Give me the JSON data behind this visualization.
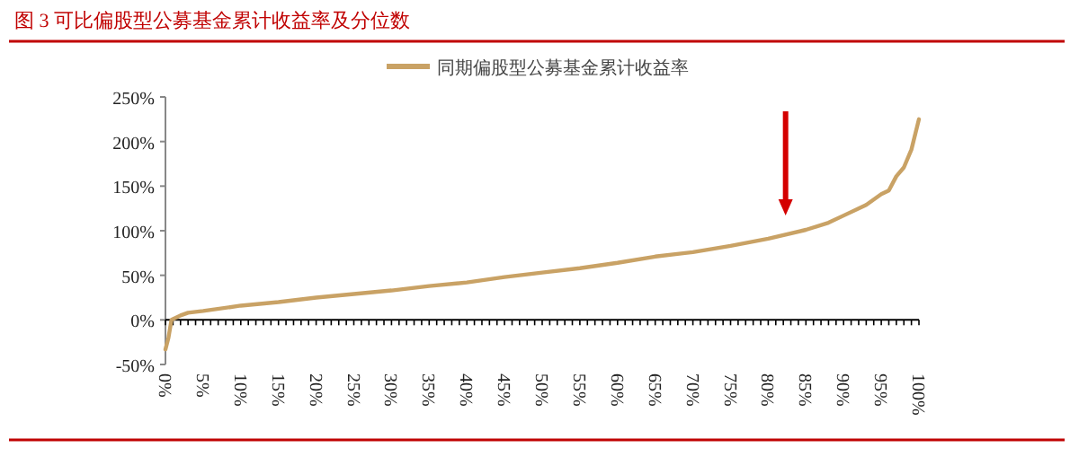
{
  "chart_data": {
    "type": "line",
    "title": "图 3    可比偏股型公募基金累计收益率及分位数",
    "legend": "top",
    "series": [
      {
        "name": "同期偏股型公募基金累计收益率",
        "color": "#c9a265",
        "x": [
          0,
          0.4,
          0.8,
          2,
          3,
          5,
          10,
          15,
          20,
          25,
          30,
          35,
          40,
          45,
          50,
          55,
          60,
          65,
          70,
          75,
          80,
          85,
          88,
          90,
          93,
          95,
          96,
          97,
          98,
          99,
          100
        ],
        "values": [
          -33,
          -20,
          0,
          5,
          8,
          10,
          16,
          20,
          25,
          29,
          33,
          38,
          42,
          48,
          53,
          58,
          64,
          71,
          76,
          83,
          91,
          101,
          109,
          117,
          129,
          141,
          145,
          161,
          171,
          191,
          225
        ]
      }
    ],
    "xlim": [
      0,
      100
    ],
    "ylim": [
      -50,
      250
    ],
    "yticks": [
      {
        "value": -50,
        "label": "-50%"
      },
      {
        "value": 0,
        "label": "0%"
      },
      {
        "value": 50,
        "label": "50%"
      },
      {
        "value": 100,
        "label": "100%"
      },
      {
        "value": 150,
        "label": "150%"
      },
      {
        "value": 200,
        "label": "200%"
      },
      {
        "value": 250,
        "label": "250%"
      }
    ],
    "xticks": [
      {
        "value": 0,
        "label": "0%"
      },
      {
        "value": 1,
        "label": null
      },
      {
        "value": 2,
        "label": null
      },
      {
        "value": 3,
        "label": null
      },
      {
        "value": 4,
        "label": null
      },
      {
        "value": 5,
        "label": "5%"
      },
      {
        "value": 6,
        "label": null
      },
      {
        "value": 7,
        "label": null
      },
      {
        "value": 8,
        "label": null
      },
      {
        "value": 9,
        "label": null
      },
      {
        "value": 10,
        "label": "10%"
      },
      {
        "value": 11,
        "label": null
      },
      {
        "value": 12,
        "label": null
      },
      {
        "value": 13,
        "label": null
      },
      {
        "value": 14,
        "label": null
      },
      {
        "value": 15,
        "label": "15%"
      },
      {
        "value": 16,
        "label": null
      },
      {
        "value": 17,
        "label": null
      },
      {
        "value": 18,
        "label": null
      },
      {
        "value": 19,
        "label": null
      },
      {
        "value": 20,
        "label": "20%"
      },
      {
        "value": 21,
        "label": null
      },
      {
        "value": 22,
        "label": null
      },
      {
        "value": 23,
        "label": null
      },
      {
        "value": 24,
        "label": null
      },
      {
        "value": 25,
        "label": "25%"
      },
      {
        "value": 26,
        "label": null
      },
      {
        "value": 27,
        "label": null
      },
      {
        "value": 28,
        "label": null
      },
      {
        "value": 29,
        "label": null
      },
      {
        "value": 30,
        "label": "30%"
      },
      {
        "value": 31,
        "label": null
      },
      {
        "value": 32,
        "label": null
      },
      {
        "value": 33,
        "label": null
      },
      {
        "value": 34,
        "label": null
      },
      {
        "value": 35,
        "label": "35%"
      },
      {
        "value": 36,
        "label": null
      },
      {
        "value": 37,
        "label": null
      },
      {
        "value": 38,
        "label": null
      },
      {
        "value": 39,
        "label": null
      },
      {
        "value": 40,
        "label": "40%"
      },
      {
        "value": 41,
        "label": null
      },
      {
        "value": 42,
        "label": null
      },
      {
        "value": 43,
        "label": null
      },
      {
        "value": 44,
        "label": null
      },
      {
        "value": 45,
        "label": "45%"
      },
      {
        "value": 46,
        "label": null
      },
      {
        "value": 47,
        "label": null
      },
      {
        "value": 48,
        "label": null
      },
      {
        "value": 49,
        "label": null
      },
      {
        "value": 50,
        "label": "50%"
      },
      {
        "value": 51,
        "label": null
      },
      {
        "value": 52,
        "label": null
      },
      {
        "value": 53,
        "label": null
      },
      {
        "value": 54,
        "label": null
      },
      {
        "value": 55,
        "label": "55%"
      },
      {
        "value": 56,
        "label": null
      },
      {
        "value": 57,
        "label": null
      },
      {
        "value": 58,
        "label": null
      },
      {
        "value": 59,
        "label": null
      },
      {
        "value": 60,
        "label": "60%"
      },
      {
        "value": 61,
        "label": null
      },
      {
        "value": 62,
        "label": null
      },
      {
        "value": 63,
        "label": null
      },
      {
        "value": 64,
        "label": null
      },
      {
        "value": 65,
        "label": "65%"
      },
      {
        "value": 66,
        "label": null
      },
      {
        "value": 67,
        "label": null
      },
      {
        "value": 68,
        "label": null
      },
      {
        "value": 69,
        "label": null
      },
      {
        "value": 70,
        "label": "70%"
      },
      {
        "value": 71,
        "label": null
      },
      {
        "value": 72,
        "label": null
      },
      {
        "value": 73,
        "label": null
      },
      {
        "value": 74,
        "label": null
      },
      {
        "value": 75,
        "label": "75%"
      },
      {
        "value": 76,
        "label": null
      },
      {
        "value": 77,
        "label": null
      },
      {
        "value": 78,
        "label": null
      },
      {
        "value": 79,
        "label": null
      },
      {
        "value": 80,
        "label": "80%"
      },
      {
        "value": 81,
        "label": null
      },
      {
        "value": 82,
        "label": null
      },
      {
        "value": 83,
        "label": null
      },
      {
        "value": 84,
        "label": null
      },
      {
        "value": 85,
        "label": "85%"
      },
      {
        "value": 86,
        "label": null
      },
      {
        "value": 87,
        "label": null
      },
      {
        "value": 88,
        "label": null
      },
      {
        "value": 89,
        "label": null
      },
      {
        "value": 90,
        "label": "90%"
      },
      {
        "value": 91,
        "label": null
      },
      {
        "value": 92,
        "label": null
      },
      {
        "value": 93,
        "label": null
      },
      {
        "value": 94,
        "label": null
      },
      {
        "value": 95,
        "label": "95%"
      },
      {
        "value": 96,
        "label": null
      },
      {
        "value": 97,
        "label": null
      },
      {
        "value": 98,
        "label": null
      },
      {
        "value": 99,
        "label": null
      },
      {
        "value": 100,
        "label": "100%"
      }
    ]
  }
}
